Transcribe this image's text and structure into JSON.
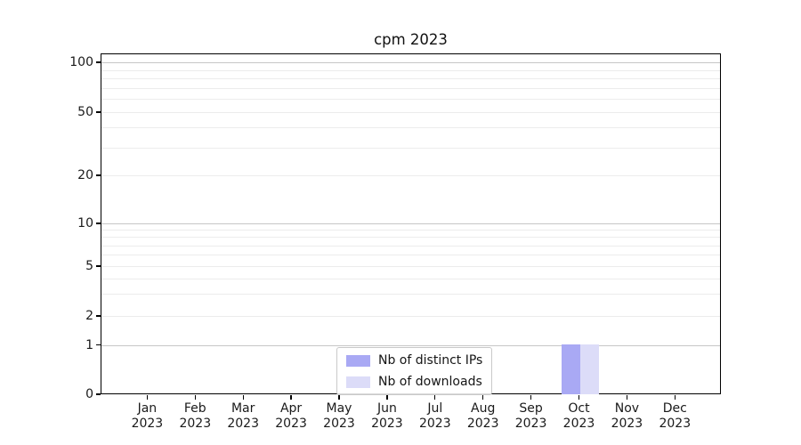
{
  "chart_data": {
    "type": "bar",
    "title": "cpm 2023",
    "categories": [
      "Jan 2023",
      "Feb 2023",
      "Mar 2023",
      "Apr 2023",
      "May 2023",
      "Jun 2023",
      "Jul 2023",
      "Aug 2023",
      "Sep 2023",
      "Oct 2023",
      "Nov 2023",
      "Dec 2023"
    ],
    "series": [
      {
        "name": "Nb of distinct IPs",
        "color": "#a9a9f4",
        "values": [
          0,
          0,
          0,
          0,
          0,
          0,
          0,
          0,
          0,
          1,
          0,
          0
        ]
      },
      {
        "name": "Nb of downloads",
        "color": "#dcdcf8",
        "values": [
          0,
          0,
          0,
          0,
          0,
          0,
          0,
          0,
          0,
          1,
          0,
          0
        ]
      }
    ],
    "yscale": "symlog",
    "ylim": [
      0,
      120
    ],
    "y_tick_values": [
      100,
      50,
      20,
      10,
      5,
      2,
      1,
      0
    ],
    "y_tick_labels": [
      "100",
      "50",
      "20",
      "10",
      "5",
      "2",
      "1",
      "0"
    ],
    "y_minor_values": [
      90,
      80,
      70,
      60,
      40,
      30,
      9,
      8,
      7,
      6,
      4,
      3
    ],
    "y_major_grid_values": [
      100,
      10,
      1
    ],
    "xlabel": "",
    "ylabel": "",
    "grid": "horizontal",
    "legend_position": "lower center",
    "colors": {
      "major_grid": "#c6c6c6",
      "minor_grid": "#ececec",
      "spine": "#000000",
      "bar_distinct_ips": "#a9a9f4",
      "bar_downloads": "#dcdcf8"
    }
  }
}
